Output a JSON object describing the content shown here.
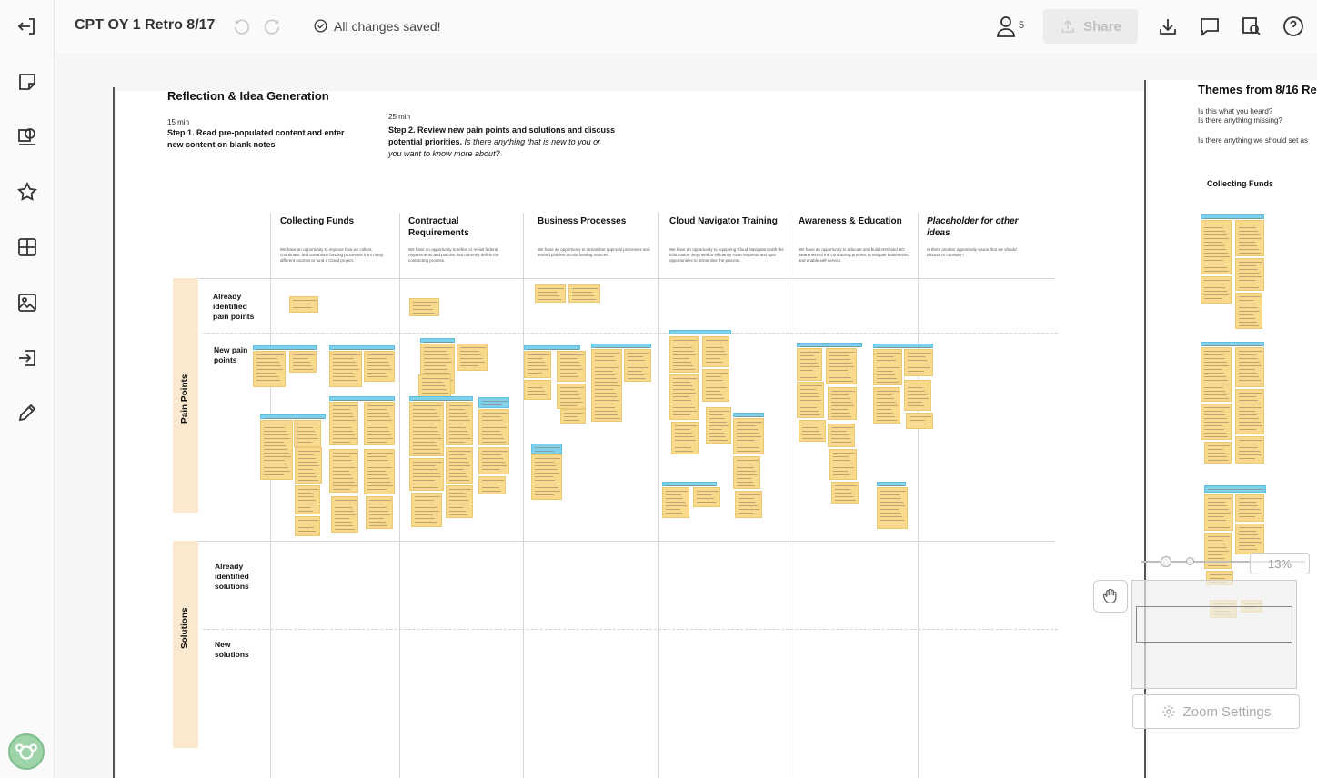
{
  "topbar": {
    "title": "CPT OY 1 Retro 8/17",
    "save_status": "All changes saved!",
    "user_count": "5",
    "share_label": "Share"
  },
  "icons": {
    "left": [
      "exit-icon",
      "sticky-note-icon",
      "shapes-icon",
      "star-icon",
      "grid-icon",
      "image-icon",
      "import-icon",
      "pen-icon"
    ],
    "top": [
      "undo-icon",
      "redo-icon",
      "check-circle-icon",
      "users-icon",
      "upload-icon",
      "download-icon",
      "comment-icon",
      "search-icon",
      "help-icon"
    ]
  },
  "board": {
    "title": "Reflection & Idea Generation",
    "step1": {
      "time": "15 min",
      "text": "Step 1. Read pre-populated content and enter new content on blank notes"
    },
    "step2": {
      "time": "25 min",
      "text_bold": "Step 2. Review new pain points and solutions and discuss potential priorities.",
      "text_italic": "Is there anything that is new to you or you want to know more about?"
    },
    "columns": [
      {
        "title": "Collecting Funds",
        "desc": "We have an opportunity to improve how we collect, coordinate, and streamline funding processes from many different sources to fund a Cloud project."
      },
      {
        "title": "Contractual Requirements",
        "desc": "We have an opportunity to refine or revisit federal requirements and policies that currently define the contracting process."
      },
      {
        "title": "Business Processes",
        "desc": "We have an opportunity to streamline approval processes and amend policies across funding sources."
      },
      {
        "title": "Cloud Navigator Training",
        "desc": "We have an opportunity to equipping Cloud Navigators with the information they need to efficiently route requests and spot opportunities to streamline the process."
      },
      {
        "title": "Awareness & Education",
        "desc": "We have an opportunity to educate and build ADO and BO awareness of the contracting process to mitigate bottlenecks and enable self-service."
      },
      {
        "title": "Placeholder for other ideas",
        "desc": "Is there another opportunity space that we should discuss or consider?"
      }
    ],
    "bands": {
      "pain": "Pain Points",
      "solutions": "Solutions"
    },
    "rows": {
      "already_pain": "Already identified pain points",
      "new_pain": "New pain points",
      "already_solutions": "Already identified solutions",
      "new_solutions": "New solutions"
    }
  },
  "right_board": {
    "title": "Themes from 8/16 Re",
    "q1": "Is this what you heard?",
    "q2": "Is there anything missing?",
    "q3": "Is there anything we should set as",
    "column": "Collecting Funds"
  },
  "zoom": {
    "percent": "13%",
    "settings_label": "Zoom Settings"
  }
}
